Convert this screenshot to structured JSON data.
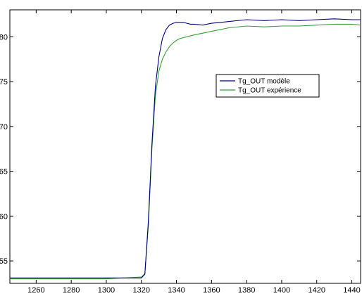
{
  "chart_data": {
    "type": "line",
    "title": "",
    "xlabel": "",
    "ylabel": "",
    "xlim": [
      1245,
      1445
    ],
    "ylim": [
      52.5,
      83
    ],
    "xticks": [
      1260,
      1280,
      1300,
      1320,
      1340,
      1360,
      1380,
      1400,
      1420,
      1440
    ],
    "xtick_labels": [
      "1260",
      "1280",
      "1300",
      "1320",
      "1340",
      "1360",
      "1380",
      "1400",
      "1420",
      "1440"
    ],
    "yticks": [
      55,
      60,
      65,
      70,
      75,
      80
    ],
    "ytick_labels": [
      "55",
      "60",
      "65",
      "70",
      "75",
      "80"
    ],
    "grid": false,
    "legend_position": "center-right",
    "series": [
      {
        "name": "Tg_OUT modèle",
        "color": "#00007f",
        "x": [
          1245,
          1300,
          1320,
          1322,
          1324,
          1326,
          1328,
          1330,
          1332,
          1334,
          1336,
          1338,
          1340,
          1342,
          1344,
          1346,
          1348,
          1350,
          1355,
          1360,
          1365,
          1370,
          1380,
          1390,
          1400,
          1410,
          1420,
          1430,
          1440,
          1445
        ],
        "y": [
          53.1,
          53.1,
          53.1,
          53.5,
          59.5,
          68.0,
          74.5,
          77.8,
          79.8,
          80.8,
          81.3,
          81.5,
          81.6,
          81.6,
          81.6,
          81.5,
          81.4,
          81.4,
          81.3,
          81.5,
          81.6,
          81.7,
          81.9,
          81.8,
          81.9,
          81.8,
          81.9,
          82.0,
          81.9,
          81.9
        ]
      },
      {
        "name": "Tg_OUT expérience",
        "color": "#3a9e3a",
        "x": [
          1245,
          1300,
          1320,
          1322,
          1324,
          1326,
          1328,
          1330,
          1332,
          1334,
          1336,
          1338,
          1340,
          1342,
          1344,
          1346,
          1350,
          1355,
          1360,
          1365,
          1370,
          1380,
          1390,
          1400,
          1410,
          1420,
          1430,
          1440,
          1445
        ],
        "y": [
          53.0,
          53.0,
          53.2,
          53.6,
          59.0,
          67.5,
          73.5,
          76.2,
          77.5,
          78.3,
          78.9,
          79.3,
          79.6,
          79.8,
          79.9,
          80.0,
          80.2,
          80.4,
          80.6,
          80.8,
          81.0,
          81.2,
          81.1,
          81.2,
          81.2,
          81.3,
          81.4,
          81.4,
          81.3
        ]
      }
    ]
  }
}
